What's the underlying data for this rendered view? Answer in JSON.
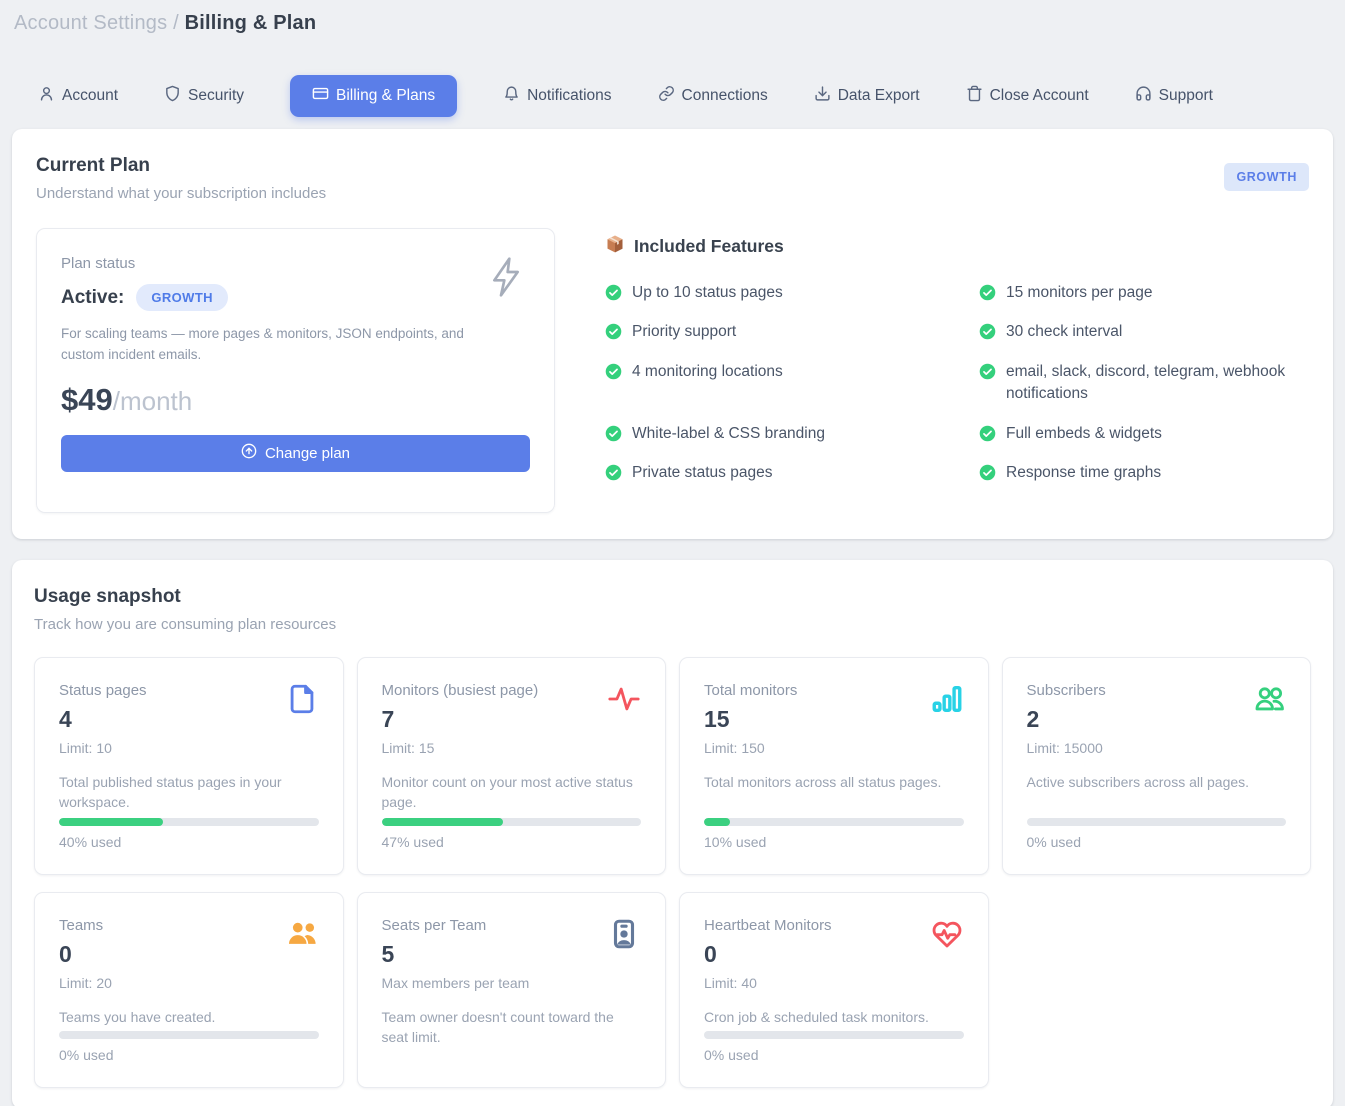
{
  "breadcrumb": {
    "section": "Account Settings",
    "separator": "/",
    "page": "Billing & Plan"
  },
  "tabs": [
    {
      "label": "Account",
      "icon": "user-icon",
      "active": false
    },
    {
      "label": "Security",
      "icon": "shield-icon",
      "active": false
    },
    {
      "label": "Billing & Plans",
      "icon": "credit-card-icon",
      "active": true
    },
    {
      "label": "Notifications",
      "icon": "bell-icon",
      "active": false
    },
    {
      "label": "Connections",
      "icon": "link-icon",
      "active": false
    },
    {
      "label": "Data Export",
      "icon": "download-icon",
      "active": false
    },
    {
      "label": "Close Account",
      "icon": "trash-icon",
      "active": false
    },
    {
      "label": "Support",
      "icon": "headset-icon",
      "active": false
    }
  ],
  "current_plan": {
    "title": "Current Plan",
    "subtitle": "Understand what your subscription includes",
    "top_badge": "GROWTH",
    "status_card": {
      "label": "Plan status",
      "status": "Active:",
      "badge": "GROWTH",
      "description": "For scaling teams — more pages & monitors, JSON endpoints, and custom incident emails.",
      "price": "$49",
      "price_suffix": "/month",
      "change_button_label": "Change plan",
      "icon": "lightning-icon"
    },
    "features": {
      "heading": "Included Features",
      "heading_icon": "package-icon",
      "check_color": "#34d07c",
      "left": [
        "Up to 10 status pages",
        "Priority support",
        "4 monitoring locations",
        "White-label & CSS branding",
        "Private status pages"
      ],
      "right": [
        "15 monitors per page",
        "30 check interval",
        "email, slack, discord, telegram, webhook notifications",
        "Full embeds & widgets",
        "Response time graphs"
      ]
    }
  },
  "usage": {
    "title": "Usage snapshot",
    "subtitle": "Track how you are consuming plan resources",
    "progress_color": "#3bd080",
    "cards": [
      {
        "title": "Status pages",
        "value": "4",
        "limit": "Limit: 10",
        "description": "Total published status pages in your workspace.",
        "percent": 40,
        "percent_label": "40% used",
        "icon": "file-icon",
        "icon_color": "#5b7ee8"
      },
      {
        "title": "Monitors (busiest page)",
        "value": "7",
        "limit": "Limit: 15",
        "description": "Monitor count on your most active status page.",
        "percent": 47,
        "percent_label": "47% used",
        "icon": "activity-icon",
        "icon_color": "#f4555e"
      },
      {
        "title": "Total monitors",
        "value": "15",
        "limit": "Limit: 150",
        "description": "Total monitors across all status pages.",
        "percent": 10,
        "percent_label": "10% used",
        "icon": "bar-chart-icon",
        "icon_color": "#28d2e6"
      },
      {
        "title": "Subscribers",
        "value": "2",
        "limit": "Limit: 15000",
        "description": "Active subscribers across all pages.",
        "percent": 0,
        "percent_label": "0% used",
        "icon": "users-outline-icon",
        "icon_color": "#35d07e"
      },
      {
        "title": "Teams",
        "value": "0",
        "limit": "Limit: 20",
        "description": "Teams you have created.",
        "percent": 0,
        "percent_label": "0% used",
        "icon": "users-filled-icon",
        "icon_color": "#f6a842"
      },
      {
        "title": "Seats per Team",
        "value": "5",
        "limit": "Max members per team",
        "description": "Team owner doesn't count toward the seat limit.",
        "percent": null,
        "percent_label": "",
        "icon": "contact-card-icon",
        "icon_color": "#64799a"
      },
      {
        "title": "Heartbeat Monitors",
        "value": "0",
        "limit": "Limit: 40",
        "description": "Cron job & scheduled task monitors.",
        "percent": 0,
        "percent_label": "0% used",
        "icon": "heart-pulse-icon",
        "icon_color": "#f4555e"
      }
    ]
  }
}
